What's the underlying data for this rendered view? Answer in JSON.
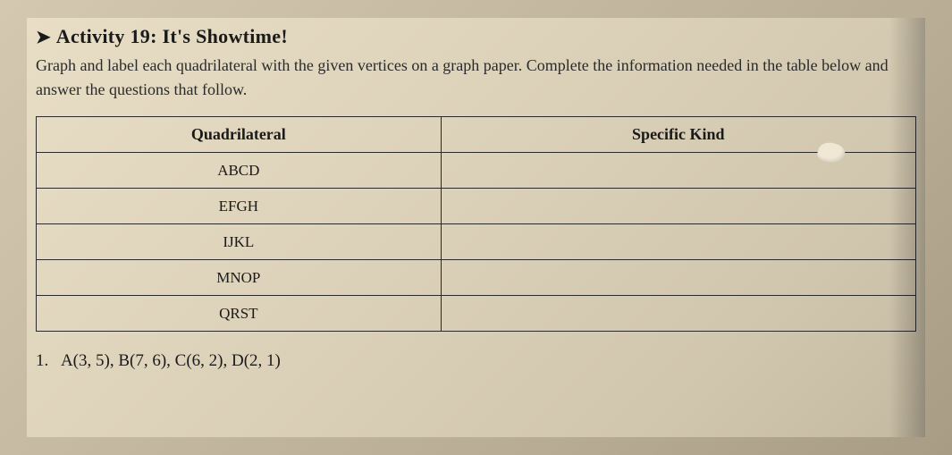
{
  "header": {
    "arrow": "➤",
    "title": "Activity 19: It's Showtime!"
  },
  "instructions": {
    "text": "Graph and label each quadrilateral with the given vertices on a graph paper. Complete the information needed in the table below and answer the questions that follow."
  },
  "table": {
    "columns": [
      "Quadrilateral",
      "Specific Kind"
    ],
    "rows": [
      [
        "ABCD",
        ""
      ],
      [
        "EFGH",
        ""
      ],
      [
        "IJKL",
        ""
      ],
      [
        "MNOP",
        ""
      ],
      [
        "QRST",
        ""
      ]
    ],
    "border_color": "#2a2a2a",
    "header_fontsize": 18,
    "cell_fontsize": 17
  },
  "question": {
    "number": "1.",
    "text": "A(3, 5), B(7, 6), C(6, 2), D(2, 1)"
  },
  "colors": {
    "page_bg_start": "#e8ddc5",
    "page_bg_end": "#c4b9a1",
    "text_primary": "#1a1a1a",
    "text_secondary": "#2a2a2a"
  }
}
